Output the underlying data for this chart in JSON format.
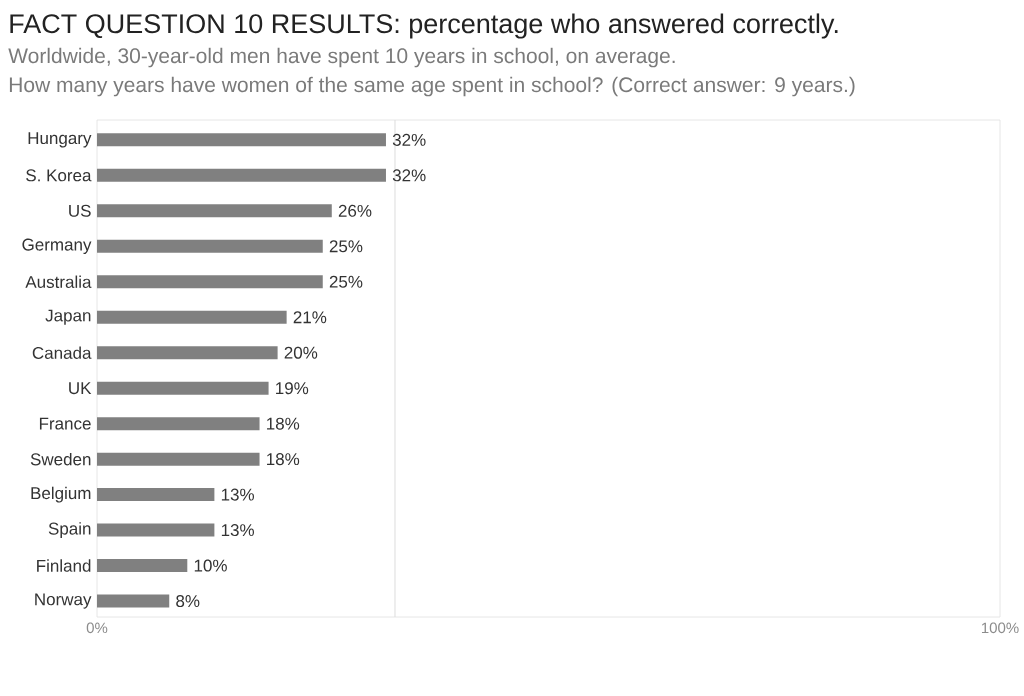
{
  "chart_data": {
    "type": "bar",
    "orientation": "horizontal",
    "title": "FACT QUESTION 10 RESULTS: percentage who answered correctly.",
    "subtitle": "Worldwide, 30-year-old men have spent 10 years in school, on average.",
    "annotations": [
      "How many years have women of the same age spent in school? (Correct answer: 9 years.)"
    ],
    "categories": [
      "Hungary",
      "S. Korea",
      "US",
      "Germany",
      "Australia",
      "Japan",
      "Canada",
      "UK",
      "France",
      "Sweden",
      "Belgium",
      "Spain",
      "Finland",
      "Norway"
    ],
    "values": [
      32,
      32,
      26,
      25,
      25,
      21,
      20,
      19,
      18,
      18,
      13,
      13,
      10,
      8
    ],
    "value_labels": [
      "32%",
      "32%",
      "26%",
      "25%",
      "25%",
      "21%",
      "20%",
      "19%",
      "18%",
      "18%",
      "13%",
      "13%",
      "10%",
      "8%"
    ],
    "color": "#808080",
    "xlim": [
      0,
      100
    ],
    "xticks": [
      {
        "value": 0,
        "label": "0%"
      },
      {
        "value": 100,
        "label": "100%"
      }
    ],
    "ref_lines": [
      {
        "axis": "x",
        "value": 33,
        "color": "#dcdcdc"
      }
    ]
  }
}
